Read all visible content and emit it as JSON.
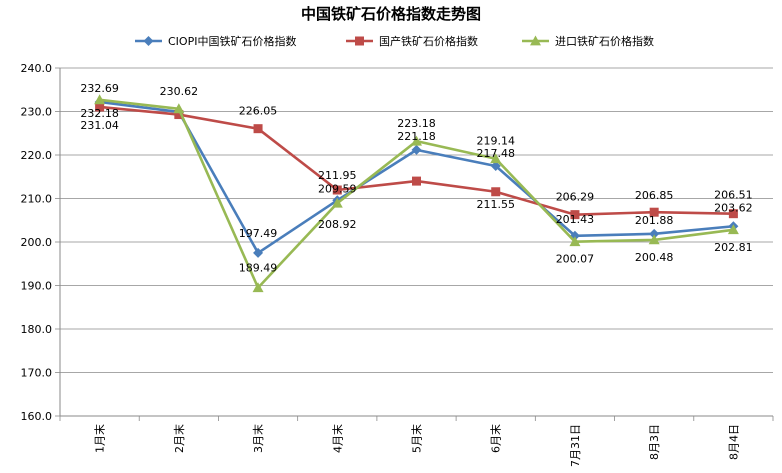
{
  "chart_data": {
    "type": "line",
    "title": "中国铁矿石价格指数走势图",
    "categories": [
      "1月末",
      "2月末",
      "3月末",
      "4月末",
      "5月末",
      "6月末",
      "7月31日",
      "8月3日",
      "8月4日"
    ],
    "ylim": [
      160.0,
      240.0
    ],
    "yticks": [
      "160.0",
      "170.0",
      "180.0",
      "190.0",
      "200.0",
      "210.0",
      "220.0",
      "230.0",
      "240.0"
    ],
    "grid": "horizontal",
    "legend_position": "top",
    "series": [
      {
        "name": "CIOPI中国铁矿石价格指数",
        "color": "#4A7EBB",
        "marker": "diamond",
        "values": [
          232.18,
          229.9,
          197.49,
          209.59,
          221.18,
          217.48,
          201.43,
          201.88,
          203.62
        ],
        "labels": [
          "232.18",
          "",
          "197.49",
          "209.59",
          "221.18",
          "217.48",
          "201.43",
          "201.88",
          "203.62"
        ]
      },
      {
        "name": "国产铁矿石价格指数",
        "color": "#BE4B48",
        "marker": "square",
        "values": [
          231.04,
          229.3,
          226.05,
          211.95,
          214.0,
          211.55,
          206.29,
          206.85,
          206.51
        ],
        "labels": [
          "231.04",
          "",
          "226.05",
          "211.95",
          "",
          "211.55",
          "206.29",
          "206.85",
          "206.51"
        ]
      },
      {
        "name": "进口铁矿石价格指数",
        "color": "#98B954",
        "marker": "triangle",
        "values": [
          232.69,
          230.62,
          189.49,
          208.92,
          223.18,
          219.14,
          200.07,
          200.48,
          202.81
        ],
        "labels": [
          "232.69",
          "230.62",
          "189.49",
          "208.92",
          "223.18",
          "219.14",
          "200.07",
          "200.48",
          "202.81"
        ]
      }
    ]
  }
}
